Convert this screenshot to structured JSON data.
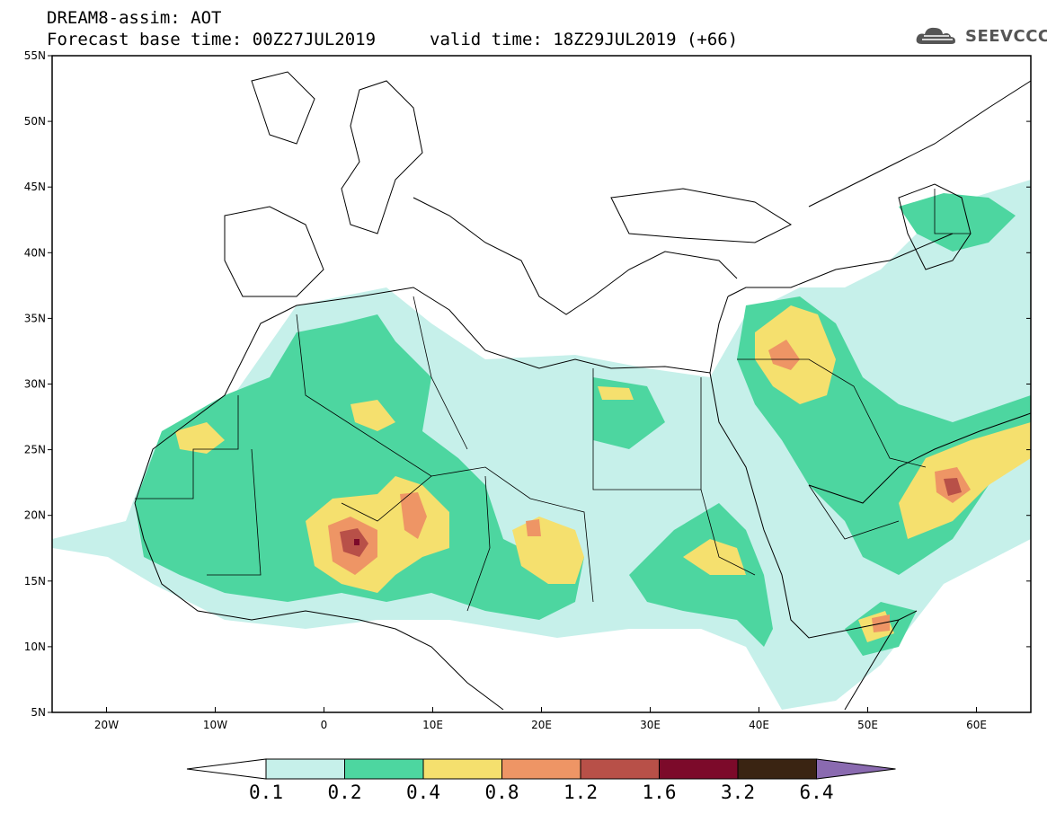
{
  "header": {
    "line1": "DREAM8-assim: AOT",
    "line2": "Forecast base time: 00Z27JUL2019",
    "line3": "valid time: 18Z29JUL2019 (+66)",
    "logo": "SEEVCCC"
  },
  "map": {
    "lat_labels": [
      "55N",
      "50N",
      "45N",
      "40N",
      "35N",
      "30N",
      "25N",
      "20N",
      "15N",
      "10N",
      "5N"
    ],
    "lon_labels": [
      "20W",
      "10W",
      "0",
      "10E",
      "20E",
      "30E",
      "40E",
      "50E",
      "60E"
    ],
    "lat_range": [
      5,
      55
    ],
    "lon_range": [
      -25,
      65
    ]
  },
  "colorbar": {
    "levels": [
      "0.1",
      "0.2",
      "0.4",
      "0.8",
      "1.2",
      "1.6",
      "3.2",
      "6.4"
    ],
    "colors": [
      "#c6f0ea",
      "#4dd6a0",
      "#f5e06e",
      "#ee9565",
      "#b85048",
      "#7c0a2a",
      "#3a2412",
      "#8a6ab0"
    ],
    "under_color": "#ffffff"
  }
}
